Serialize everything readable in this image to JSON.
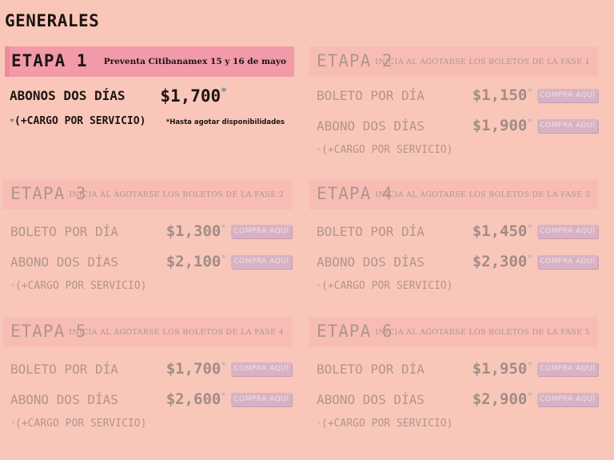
{
  "page": {
    "heading": "GENERALES"
  },
  "stages": [
    {
      "title": "ETAPA 1",
      "note": "Preventa Citibanamex 15 y 16 de mayo",
      "rows": [
        {
          "label": "ABONOS DOS DÍAS",
          "price": "$1,700",
          "asterisk": "*"
        }
      ],
      "fee": "(+CARGO POR SERVICIO)",
      "fee_asterisk": "*",
      "footnote": "*Hasta agotar disponibilidades"
    },
    {
      "title": "ETAPA 2",
      "note": "INICIA AL AGOTARSE LOS BOLETOS DE LA FASE 1",
      "rows": [
        {
          "label": "BOLETO POR DÍA",
          "price": "$1,150",
          "asterisk": "*",
          "button": "COMPRA AQUÍ"
        },
        {
          "label": "ABONO DOS DÍAS",
          "price": "$1,900",
          "asterisk": "*",
          "button": "COMPRA AQUÍ"
        }
      ],
      "fee": "(+CARGO POR SERVICIO)",
      "fee_asterisk": "*"
    },
    {
      "title": "ETAPA 3",
      "note": "INICIA AL AGOTARSE LOS BOLETOS DE LA FASE 2",
      "rows": [
        {
          "label": "BOLETO POR DÍA",
          "price": "$1,300",
          "asterisk": "*",
          "button": "COMPRA AQUÍ"
        },
        {
          "label": "ABONO DOS DÍAS",
          "price": "$2,100",
          "asterisk": "*",
          "button": "COMPRA AQUÍ"
        }
      ],
      "fee": "(+CARGO POR SERVICIO)",
      "fee_asterisk": "*"
    },
    {
      "title": "ETAPA 4",
      "note": "INICIA AL AGOTARSE LOS BOLETOS DE LA FASE 3",
      "rows": [
        {
          "label": "BOLETO POR DÍA",
          "price": "$1,450",
          "asterisk": "*",
          "button": "COMPRA AQUÍ"
        },
        {
          "label": "ABONO DOS DÍAS",
          "price": "$2,300",
          "asterisk": "*",
          "button": "COMPRA AQUÍ"
        }
      ],
      "fee": "(+CARGO POR SERVICIO)",
      "fee_asterisk": "*"
    },
    {
      "title": "ETAPA 5",
      "note": "INICIA AL AGOTARSE LOS BOLETOS DE LA FASE 4",
      "rows": [
        {
          "label": "BOLETO POR DÍA",
          "price": "$1,700",
          "asterisk": "*",
          "button": "COMPRA AQUÍ"
        },
        {
          "label": "ABONO DOS DÍAS",
          "price": "$2,600",
          "asterisk": "*",
          "button": "COMPRA AQUÍ"
        }
      ],
      "fee": "(+CARGO POR SERVICIO)",
      "fee_asterisk": "*"
    },
    {
      "title": "ETAPA 6",
      "note": "INICIA AL AGOTARSE LOS BOLETOS DE LA FASE 5",
      "rows": [
        {
          "label": "BOLETO POR DÍA",
          "price": "$1,950",
          "asterisk": "*",
          "button": "COMPRA AQUÍ"
        },
        {
          "label": "ABONO DOS DÍAS",
          "price": "$2,900",
          "asterisk": "*",
          "button": "COMPRA AQUÍ"
        }
      ],
      "fee": "(+CARGO POR SERVICIO)",
      "fee_asterisk": "*"
    }
  ],
  "colors": {
    "background": "#f9c7b9",
    "active_header": "#f29aa8",
    "inactive_header": "#f7bdb4",
    "button": "#d8b2c4",
    "active_text": "#1e1414",
    "inactive_text": "#b2948e"
  }
}
